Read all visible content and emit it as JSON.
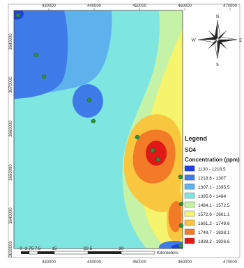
{
  "map": {
    "x_ticks": [
      "430000",
      "440000",
      "450000",
      "460000",
      "470000"
    ],
    "y_ticks": [
      "3680000",
      "3670000",
      "3660000",
      "3650000",
      "3640000",
      "3630000"
    ]
  },
  "compass": {
    "n": "N",
    "s": "S",
    "e": "E",
    "w": "W"
  },
  "legend": {
    "title": "Legend",
    "layer": "SO4",
    "field": "Concentration (ppm)",
    "classes": [
      {
        "label": "1130 - 1218.5",
        "color": "#1f3fe0"
      },
      {
        "label": "1218.6 - 1307",
        "color": "#3f7be8"
      },
      {
        "label": "1307.1 - 1395.5",
        "color": "#5db2ee"
      },
      {
        "label": "1395.6 - 1484",
        "color": "#7fe5e0"
      },
      {
        "label": "1484.1 - 1572.5",
        "color": "#c4f2a6"
      },
      {
        "label": "1572.6 - 1661.1",
        "color": "#f6f36d"
      },
      {
        "label": "1661.2 - 1749.6",
        "color": "#f9c640"
      },
      {
        "label": "1749.7 - 1838.1",
        "color": "#f37a27"
      },
      {
        "label": "1838.2 - 1926.6",
        "color": "#e01818"
      }
    ]
  },
  "scale": {
    "labels": [
      "0",
      "3.75",
      "7.5",
      "15",
      "22.5",
      "30"
    ],
    "unit": "Kilometers"
  },
  "colors": {
    "point": "#2f8f3a",
    "frame": "#555555"
  }
}
